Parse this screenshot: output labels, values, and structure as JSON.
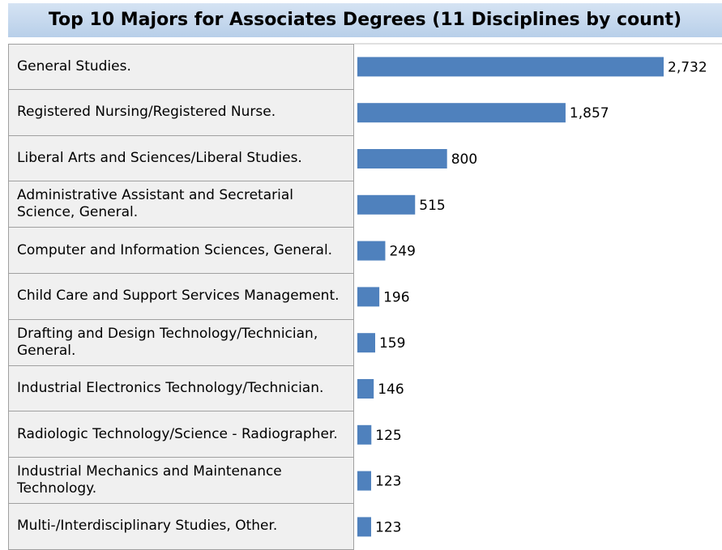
{
  "chart_data": {
    "type": "bar",
    "orientation": "horizontal",
    "title": "Top 10 Majors for Associates Degrees (11 Disciplines by count)",
    "categories": [
      "General Studies.",
      "Registered Nursing/Registered Nurse.",
      "Liberal Arts and Sciences/Liberal Studies.",
      "Administrative Assistant and Secretarial Science, General.",
      "Computer and Information Sciences, General.",
      "Child Care and Support Services Management.",
      "Drafting and Design Technology/Technician, General.",
      "Industrial Electronics Technology/Technician.",
      "Radiologic Technology/Science - Radiographer.",
      "Industrial Mechanics and Maintenance Technology.",
      "Multi-/Interdisciplinary Studies, Other."
    ],
    "values": [
      2732,
      1857,
      800,
      515,
      249,
      196,
      159,
      146,
      125,
      123,
      123
    ],
    "value_labels": [
      "2,732",
      "1,857",
      "800",
      "515",
      "249",
      "196",
      "159",
      "146",
      "125",
      "123",
      "123"
    ],
    "color": "#4f81bd"
  }
}
